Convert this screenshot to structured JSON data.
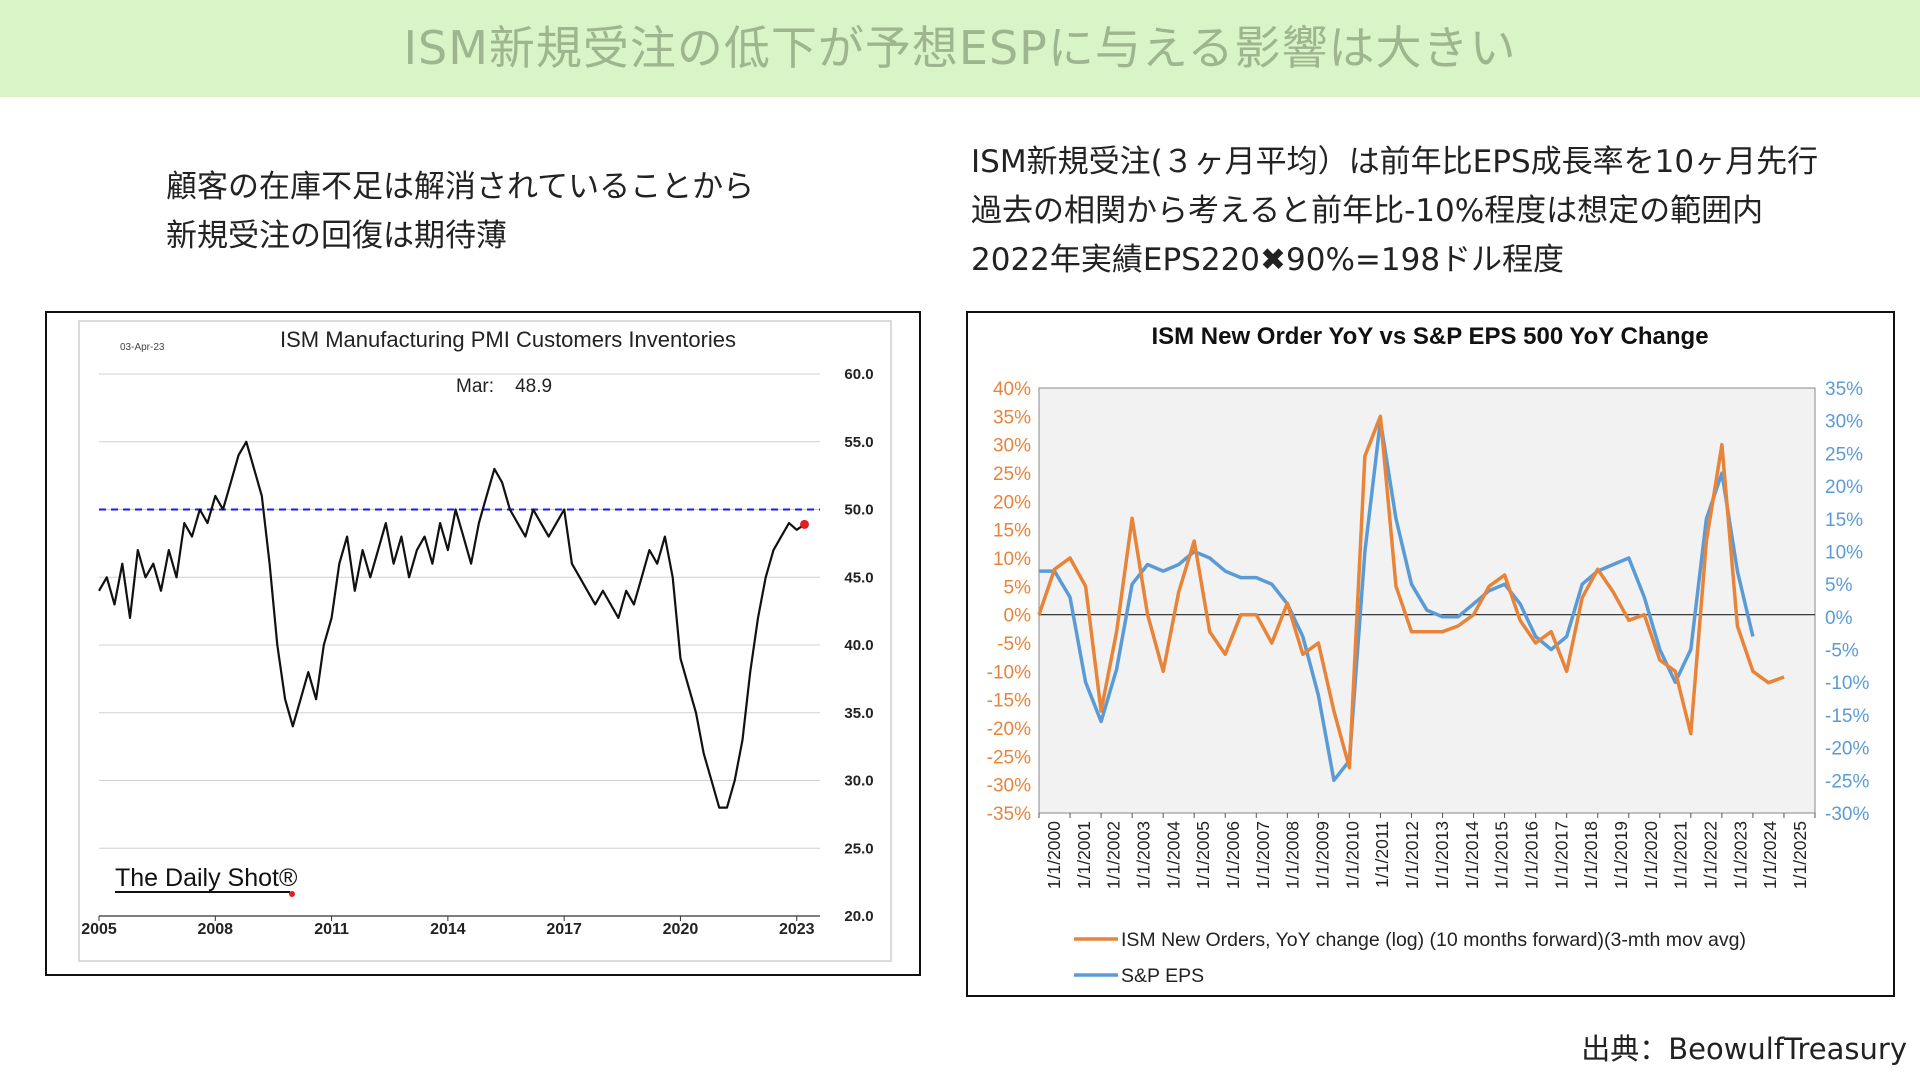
{
  "header": {
    "title": "ISM新規受注の低下が予想ESPに与える影響は大きい"
  },
  "left_note": {
    "line1": "顧客の在庫不足は解消されていることから",
    "line2": "新規受注の回復は期待薄"
  },
  "right_note": {
    "line1": "ISM新規受注(３ヶ月平均）は前年比EPS成長率を10ヶ月先行",
    "line2": "過去の相関から考えると前年比-10%程度は想定の範囲内",
    "line3": "2022年実績EPS220✖90%=198ドル程度"
  },
  "source": "出典：BeowulfTreasury",
  "colors": {
    "banner": "#d9f4c6",
    "ism_orange": "#e8843a",
    "eps_blue": "#5b9bd5",
    "ref_line": "#1a1aff",
    "marker": "#e02020"
  },
  "chart_data": [
    {
      "type": "line",
      "title": "ISM Manufacturing PMI Customers Inventories",
      "date_stamp": "03-Apr-23",
      "annotation": "Mar:    48.9",
      "watermark": "The Daily Shot®",
      "x_tick_labels": [
        "2005",
        "2008",
        "2011",
        "2014",
        "2017",
        "2020",
        "2023"
      ],
      "y_tick_labels": [
        "60.0",
        "55.0",
        "50.0",
        "45.0",
        "40.0",
        "35.0",
        "30.0",
        "25.0",
        "20.0"
      ],
      "ylim": [
        20,
        60
      ],
      "xlim": [
        2005.0,
        2023.6
      ],
      "reference_line": 50,
      "latest_point": {
        "x": 2023.2,
        "y": 48.9
      },
      "series": [
        {
          "x": [
            2005.0,
            2005.2,
            2005.4,
            2005.6,
            2005.8,
            2006.0,
            2006.2,
            2006.4,
            2006.6,
            2006.8,
            2007.0,
            2007.2,
            2007.4,
            2007.6,
            2007.8,
            2008.0,
            2008.2,
            2008.4,
            2008.6,
            2008.8,
            2009.0,
            2009.2,
            2009.4,
            2009.6,
            2009.8,
            2010.0,
            2010.2,
            2010.4,
            2010.6,
            2010.8,
            2011.0,
            2011.2,
            2011.4,
            2011.6,
            2011.8,
            2012.0,
            2012.2,
            2012.4,
            2012.6,
            2012.8,
            2013.0,
            2013.2,
            2013.4,
            2013.6,
            2013.8,
            2014.0,
            2014.2,
            2014.4,
            2014.6,
            2014.8,
            2015.0,
            2015.2,
            2015.4,
            2015.6,
            2015.8,
            2016.0,
            2016.2,
            2016.4,
            2016.6,
            2016.8,
            2017.0,
            2017.2,
            2017.4,
            2017.6,
            2017.8,
            2018.0,
            2018.2,
            2018.4,
            2018.6,
            2018.8,
            2019.0,
            2019.2,
            2019.4,
            2019.6,
            2019.8,
            2020.0,
            2020.2,
            2020.4,
            2020.6,
            2020.8,
            2021.0,
            2021.2,
            2021.4,
            2021.6,
            2021.8,
            2022.0,
            2022.2,
            2022.4,
            2022.6,
            2022.8,
            2023.0,
            2023.2
          ],
          "y": [
            44,
            45,
            43,
            46,
            42,
            47,
            45,
            46,
            44,
            47,
            45,
            49,
            48,
            50,
            49,
            51,
            50,
            52,
            54,
            55,
            53,
            51,
            46,
            40,
            36,
            34,
            36,
            38,
            36,
            40,
            42,
            46,
            48,
            44,
            47,
            45,
            47,
            49,
            46,
            48,
            45,
            47,
            48,
            46,
            49,
            47,
            50,
            48,
            46,
            49,
            51,
            53,
            52,
            50,
            49,
            48,
            50,
            49,
            48,
            49,
            50,
            46,
            45,
            44,
            43,
            44,
            43,
            42,
            44,
            43,
            45,
            47,
            46,
            48,
            45,
            39,
            37,
            35,
            32,
            30,
            28,
            28,
            30,
            33,
            38,
            42,
            45,
            47,
            48,
            49,
            48.5,
            48.9
          ]
        }
      ]
    },
    {
      "type": "line",
      "title": "ISM New Order YoY vs S&P EPS 500 YoY Change",
      "x_tick_labels": [
        "1/1/2000",
        "1/1/2001",
        "1/1/2002",
        "1/1/2003",
        "1/1/2004",
        "1/1/2005",
        "1/1/2006",
        "1/1/2007",
        "1/1/2008",
        "1/1/2009",
        "1/1/2010",
        "1/1/2011",
        "1/1/2012",
        "1/1/2013",
        "1/1/2014",
        "1/1/2015",
        "1/1/2016",
        "1/1/2017",
        "1/1/2018",
        "1/1/2019",
        "1/1/2020",
        "1/1/2021",
        "1/1/2022",
        "1/1/2023",
        "1/1/2024",
        "1/1/2025"
      ],
      "y_left_tick_labels": [
        "40%",
        "35%",
        "30%",
        "25%",
        "20%",
        "15%",
        "10%",
        "5%",
        "0%",
        "-5%",
        "-10%",
        "-15%",
        "-20%",
        "-25%",
        "-30%",
        "-35%"
      ],
      "y_right_tick_labels": [
        "35%",
        "30%",
        "25%",
        "20%",
        "15%",
        "10%",
        "5%",
        "0%",
        "-5%",
        "-10%",
        "-15%",
        "-20%",
        "-25%",
        "-30%"
      ],
      "ylim_left": [
        -35,
        40
      ],
      "ylim_right": [
        -30,
        35
      ],
      "xlim": [
        2000,
        2025
      ],
      "legend_position": "bottom",
      "series": [
        {
          "name": "ISM New Orders, YoY change (log) (10 months forward)(3-mth mov avg)",
          "axis": "left",
          "color": "#e8843a",
          "x": [
            2000.0,
            2000.5,
            2001.0,
            2001.5,
            2002.0,
            2002.5,
            2003.0,
            2003.5,
            2004.0,
            2004.5,
            2005.0,
            2005.5,
            2006.0,
            2006.5,
            2007.0,
            2007.5,
            2008.0,
            2008.5,
            2009.0,
            2009.5,
            2010.0,
            2010.5,
            2011.0,
            2011.5,
            2012.0,
            2012.5,
            2013.0,
            2013.5,
            2014.0,
            2014.5,
            2015.0,
            2015.5,
            2016.0,
            2016.5,
            2017.0,
            2017.5,
            2018.0,
            2018.5,
            2019.0,
            2019.5,
            2020.0,
            2020.5,
            2021.0,
            2021.5,
            2022.0,
            2022.5,
            2023.0,
            2023.5,
            2024.0
          ],
          "y": [
            0,
            8,
            10,
            5,
            -17,
            -3,
            17,
            0,
            -10,
            4,
            13,
            -3,
            -7,
            0,
            0,
            -5,
            2,
            -7,
            -5,
            -17,
            -27,
            28,
            35,
            5,
            -3,
            -3,
            -3,
            -2,
            0,
            5,
            7,
            -1,
            -5,
            -3,
            -10,
            3,
            8,
            4,
            -1,
            0,
            -8,
            -10,
            -21,
            13,
            30,
            -2,
            -10,
            -12,
            -11
          ]
        },
        {
          "name": "S&P EPS",
          "axis": "right",
          "color": "#5b9bd5",
          "x": [
            2000.0,
            2000.5,
            2001.0,
            2001.5,
            2002.0,
            2002.5,
            2003.0,
            2003.5,
            2004.0,
            2004.5,
            2005.0,
            2005.5,
            2006.0,
            2006.5,
            2007.0,
            2007.5,
            2008.0,
            2008.5,
            2009.0,
            2009.5,
            2010.0,
            2010.5,
            2011.0,
            2011.5,
            2012.0,
            2012.5,
            2013.0,
            2013.5,
            2014.0,
            2014.5,
            2015.0,
            2015.5,
            2016.0,
            2016.5,
            2017.0,
            2017.5,
            2018.0,
            2018.5,
            2019.0,
            2019.5,
            2020.0,
            2020.5,
            2021.0,
            2021.5,
            2022.0,
            2022.5,
            2023.0
          ],
          "y": [
            7,
            7,
            3,
            -10,
            -16,
            -8,
            5,
            8,
            7,
            8,
            10,
            9,
            7,
            6,
            6,
            5,
            2,
            -3,
            -12,
            -25,
            -22,
            10,
            30,
            15,
            5,
            1,
            0,
            0,
            2,
            4,
            5,
            2,
            -3,
            -5,
            -3,
            5,
            7,
            8,
            9,
            3,
            -5,
            -10,
            -5,
            15,
            22,
            7,
            -3
          ]
        }
      ]
    }
  ]
}
